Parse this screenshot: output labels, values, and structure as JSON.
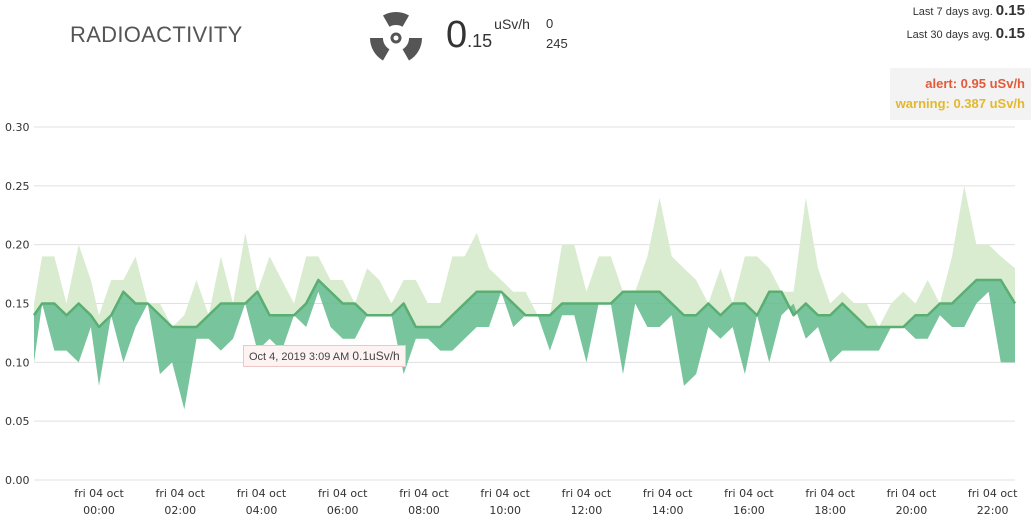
{
  "header": {
    "title": "RADIOACTIVITY",
    "reading_int": "0",
    "reading_dec": ".15",
    "reading_unit": "uSv/h",
    "count_a": "0",
    "count_b": "245",
    "avg7_label": "Last 7 days avg.",
    "avg7_value": "0.15",
    "avg30_label": "Last 30 days avg.",
    "avg30_value": "0.15",
    "alert_text": "alert: 0.95 uSv/h",
    "warning_text": "warning: 0.387 uSv/h",
    "icon": "radiation-icon"
  },
  "tooltip": {
    "date": "Oct 4, 2019 3:09 AM",
    "value": "0.1uSv/h"
  },
  "colors": {
    "line": "#5aae72",
    "band_dark": "#5fba8c",
    "band_light": "#d9ecd0",
    "grid": "#e0e0e0"
  },
  "chart_data": {
    "type": "area",
    "x_tick_labels": [
      [
        "fri 04 oct",
        "00:00"
      ],
      [
        "fri 04 oct",
        "02:00"
      ],
      [
        "fri 04 oct",
        "04:00"
      ],
      [
        "fri 04 oct",
        "06:00"
      ],
      [
        "fri 04 oct",
        "08:00"
      ],
      [
        "fri 04 oct",
        "10:00"
      ],
      [
        "fri 04 oct",
        "12:00"
      ],
      [
        "fri 04 oct",
        "14:00"
      ],
      [
        "fri 04 oct",
        "16:00"
      ],
      [
        "fri 04 oct",
        "18:00"
      ],
      [
        "fri 04 oct",
        "20:00"
      ],
      [
        "fri 04 oct",
        "22:00"
      ]
    ],
    "x_tick_hours": [
      0,
      2,
      4,
      6,
      8,
      10,
      12,
      14,
      16,
      18,
      20,
      22
    ],
    "xlim_hours": [
      -1.6,
      22.55
    ],
    "y_ticks": [
      "0.00",
      "0.05",
      "0.10",
      "0.15",
      "0.20",
      "0.25",
      "0.30"
    ],
    "ylim": [
      0,
      0.3
    ],
    "grid": true,
    "hours": [
      -1.6,
      -1.4,
      -1.1,
      -0.8,
      -0.5,
      -0.2,
      0,
      0.3,
      0.6,
      0.9,
      1.2,
      1.5,
      1.8,
      2.1,
      2.4,
      2.7,
      3.0,
      3.3,
      3.6,
      3.9,
      4.2,
      4.5,
      4.8,
      5.1,
      5.4,
      5.7,
      6.0,
      6.3,
      6.6,
      6.9,
      7.2,
      7.5,
      7.8,
      8.1,
      8.4,
      8.7,
      9.0,
      9.3,
      9.6,
      9.9,
      10.2,
      10.5,
      10.8,
      11.1,
      11.4,
      11.7,
      12.0,
      12.3,
      12.6,
      12.9,
      13.2,
      13.5,
      13.8,
      14.1,
      14.4,
      14.7,
      15.0,
      15.3,
      15.6,
      15.9,
      16.2,
      16.5,
      16.8,
      17.1,
      17.4,
      17.7,
      18.0,
      18.3,
      18.6,
      18.9,
      19.2,
      19.5,
      19.8,
      20.1,
      20.4,
      20.7,
      21.0,
      21.3,
      21.6,
      21.9,
      22.2,
      22.55
    ],
    "mean": [
      0.14,
      0.15,
      0.15,
      0.14,
      0.15,
      0.14,
      0.13,
      0.14,
      0.16,
      0.15,
      0.15,
      0.14,
      0.13,
      0.13,
      0.13,
      0.14,
      0.15,
      0.15,
      0.15,
      0.16,
      0.14,
      0.14,
      0.14,
      0.15,
      0.17,
      0.16,
      0.15,
      0.15,
      0.14,
      0.14,
      0.14,
      0.15,
      0.13,
      0.13,
      0.13,
      0.14,
      0.15,
      0.16,
      0.16,
      0.16,
      0.15,
      0.14,
      0.14,
      0.14,
      0.15,
      0.15,
      0.15,
      0.15,
      0.15,
      0.16,
      0.16,
      0.16,
      0.16,
      0.15,
      0.14,
      0.14,
      0.15,
      0.14,
      0.15,
      0.15,
      0.14,
      0.16,
      0.16,
      0.14,
      0.15,
      0.14,
      0.14,
      0.15,
      0.14,
      0.13,
      0.13,
      0.13,
      0.13,
      0.14,
      0.14,
      0.15,
      0.15,
      0.16,
      0.17,
      0.17,
      0.17,
      0.15
    ],
    "low": [
      0.1,
      0.15,
      0.11,
      0.11,
      0.1,
      0.13,
      0.08,
      0.14,
      0.1,
      0.13,
      0.15,
      0.09,
      0.1,
      0.06,
      0.12,
      0.12,
      0.11,
      0.12,
      0.15,
      0.11,
      0.12,
      0.11,
      0.14,
      0.13,
      0.16,
      0.13,
      0.12,
      0.12,
      0.14,
      0.14,
      0.14,
      0.09,
      0.12,
      0.12,
      0.11,
      0.11,
      0.12,
      0.13,
      0.13,
      0.16,
      0.13,
      0.14,
      0.14,
      0.11,
      0.14,
      0.14,
      0.1,
      0.15,
      0.15,
      0.09,
      0.15,
      0.13,
      0.13,
      0.14,
      0.08,
      0.09,
      0.13,
      0.12,
      0.13,
      0.09,
      0.14,
      0.1,
      0.14,
      0.15,
      0.12,
      0.13,
      0.1,
      0.11,
      0.11,
      0.11,
      0.11,
      0.13,
      0.13,
      0.12,
      0.12,
      0.14,
      0.13,
      0.13,
      0.15,
      0.16,
      0.1,
      0.1
    ],
    "high": [
      0.15,
      0.19,
      0.19,
      0.15,
      0.2,
      0.17,
      0.14,
      0.17,
      0.17,
      0.19,
      0.15,
      0.15,
      0.13,
      0.14,
      0.17,
      0.14,
      0.19,
      0.15,
      0.21,
      0.16,
      0.19,
      0.17,
      0.15,
      0.19,
      0.19,
      0.17,
      0.17,
      0.15,
      0.18,
      0.17,
      0.15,
      0.17,
      0.17,
      0.15,
      0.15,
      0.19,
      0.19,
      0.21,
      0.18,
      0.17,
      0.16,
      0.16,
      0.14,
      0.14,
      0.2,
      0.2,
      0.16,
      0.19,
      0.19,
      0.16,
      0.16,
      0.19,
      0.24,
      0.19,
      0.18,
      0.17,
      0.15,
      0.18,
      0.15,
      0.19,
      0.19,
      0.18,
      0.16,
      0.16,
      0.24,
      0.18,
      0.15,
      0.16,
      0.15,
      0.15,
      0.13,
      0.15,
      0.16,
      0.15,
      0.17,
      0.15,
      0.19,
      0.25,
      0.2,
      0.2,
      0.19,
      0.18
    ]
  }
}
